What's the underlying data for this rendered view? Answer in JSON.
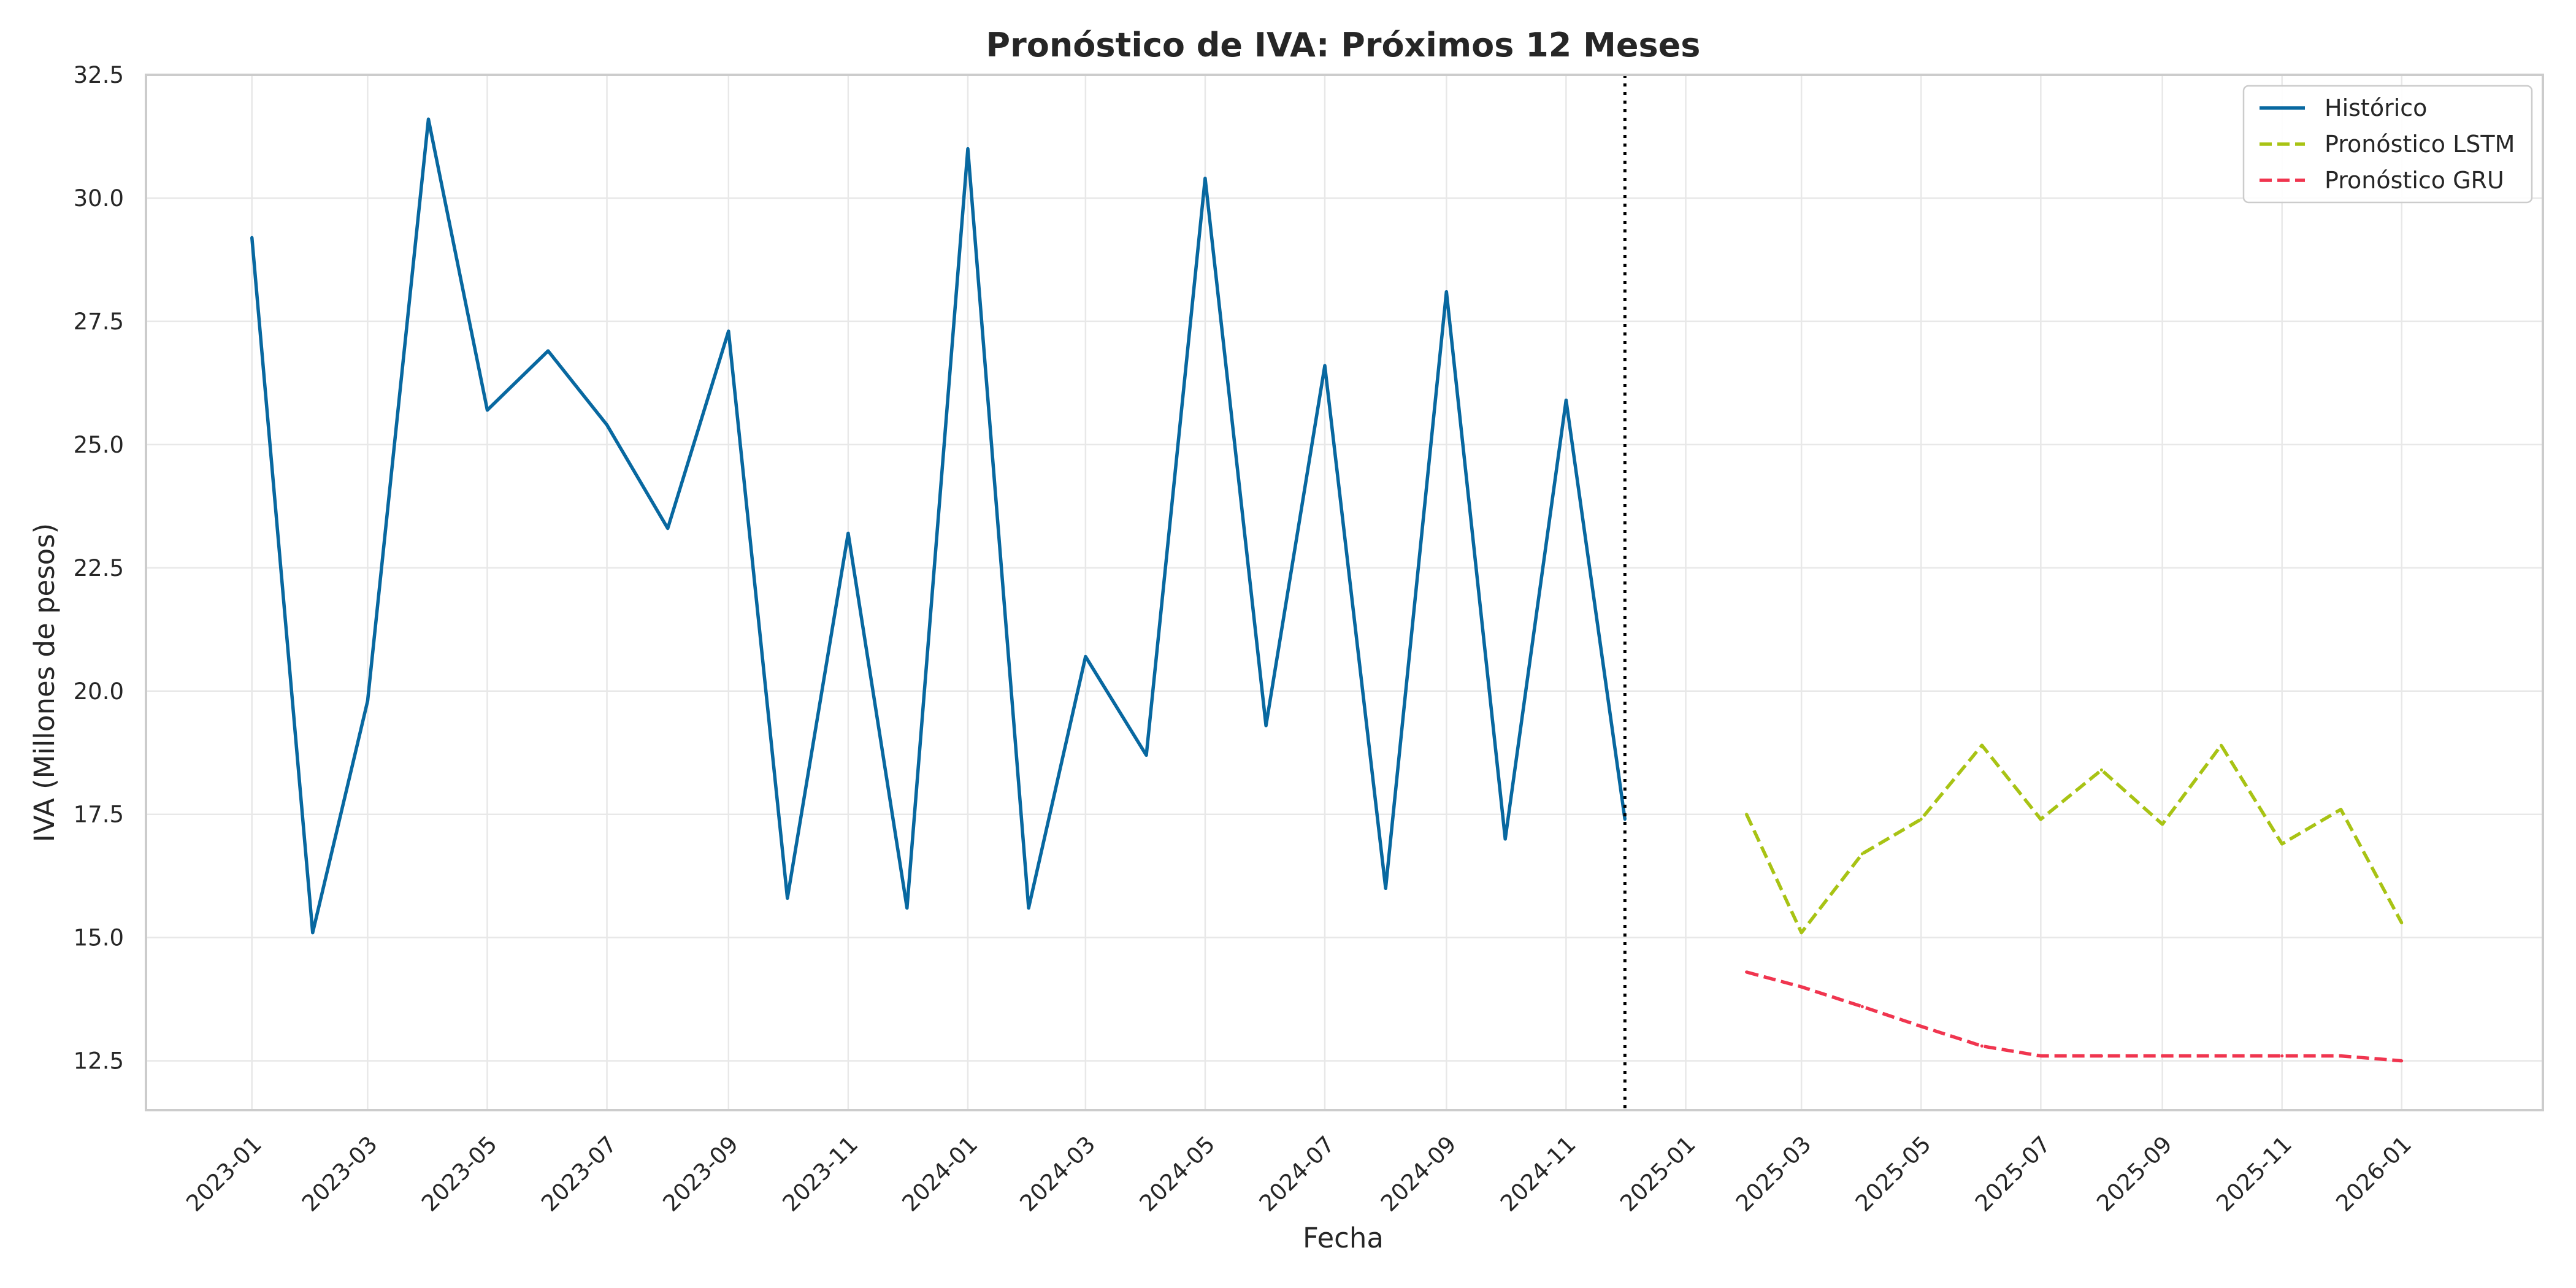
{
  "chart_data": {
    "type": "line",
    "title": "Pronóstico de IVA: Próximos 12 Meses",
    "xlabel": "Fecha",
    "ylabel": "IVA (Millones de pesos)",
    "ylim": [
      11.5,
      32.5
    ],
    "xlim": [
      "2022-11-08",
      "2026-03-14"
    ],
    "grid": true,
    "legend_position": "top-right",
    "y_ticks": [
      12.5,
      15.0,
      17.5,
      20.0,
      22.5,
      25.0,
      27.5,
      30.0,
      32.5
    ],
    "y_tick_labels": [
      "12.5",
      "15.0",
      "17.5",
      "20.0",
      "22.5",
      "25.0",
      "27.5",
      "30.0",
      "32.5"
    ],
    "x_ticks": [
      "2023-01",
      "2023-03",
      "2023-05",
      "2023-07",
      "2023-09",
      "2023-11",
      "2024-01",
      "2024-03",
      "2024-05",
      "2024-07",
      "2024-09",
      "2024-11",
      "2025-01",
      "2025-03",
      "2025-05",
      "2025-07",
      "2025-09",
      "2025-11",
      "2026-01"
    ],
    "forecast_start_marker": "2024-12",
    "series": [
      {
        "name": "Histórico",
        "color": "#0868a0",
        "style": "solid",
        "x": [
          "2023-01",
          "2023-02",
          "2023-03",
          "2023-04",
          "2023-05",
          "2023-06",
          "2023-07",
          "2023-08",
          "2023-09",
          "2023-10",
          "2023-11",
          "2023-12",
          "2024-01",
          "2024-02",
          "2024-03",
          "2024-04",
          "2024-05",
          "2024-06",
          "2024-07",
          "2024-08",
          "2024-09",
          "2024-10",
          "2024-11",
          "2024-12"
        ],
        "values": [
          29.2,
          15.1,
          19.8,
          31.6,
          25.7,
          26.9,
          25.4,
          23.3,
          27.3,
          15.8,
          23.2,
          15.6,
          31.0,
          15.6,
          20.7,
          18.7,
          30.4,
          19.3,
          26.6,
          16.0,
          28.1,
          17.0,
          25.9,
          17.4
        ]
      },
      {
        "name": "Pronóstico LSTM",
        "color": "#a8c314",
        "style": "dashed",
        "x": [
          "2025-02",
          "2025-03",
          "2025-04",
          "2025-05",
          "2025-06",
          "2025-07",
          "2025-08",
          "2025-09",
          "2025-10",
          "2025-11",
          "2025-12",
          "2026-01"
        ],
        "values": [
          17.5,
          15.1,
          16.7,
          17.4,
          18.9,
          17.4,
          18.4,
          17.3,
          18.9,
          16.9,
          17.6,
          15.3
        ]
      },
      {
        "name": "Pronóstico GRU",
        "color": "#f0354f",
        "style": "dashed",
        "x": [
          "2025-02",
          "2025-03",
          "2025-04",
          "2025-05",
          "2025-06",
          "2025-07",
          "2025-08",
          "2025-09",
          "2025-10",
          "2025-11",
          "2025-12",
          "2026-01"
        ],
        "values": [
          14.3,
          14.0,
          13.6,
          13.2,
          12.8,
          12.6,
          12.6,
          12.6,
          12.6,
          12.6,
          12.6,
          12.5
        ]
      }
    ]
  }
}
